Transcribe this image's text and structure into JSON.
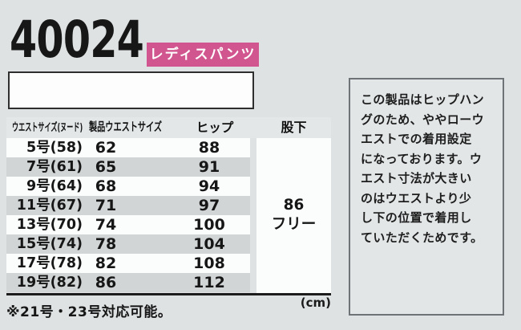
{
  "header": {
    "product_code": "40024",
    "badge_label": "レディスパンツ"
  },
  "size_table": {
    "columns": {
      "waist_nude": "ウエストサイズ(ヌード)",
      "product_waist": "製品ウエストサイズ",
      "hip": "ヒップ",
      "inseam": "股下"
    },
    "rows": [
      {
        "size": "5号(58)",
        "waist": "62",
        "hip": "88"
      },
      {
        "size": "7号(61)",
        "waist": "65",
        "hip": "91"
      },
      {
        "size": "9号(64)",
        "waist": "68",
        "hip": "94"
      },
      {
        "size": "11号(67)",
        "waist": "71",
        "hip": "97"
      },
      {
        "size": "13号(70)",
        "waist": "74",
        "hip": "100"
      },
      {
        "size": "15号(74)",
        "waist": "78",
        "hip": "104"
      },
      {
        "size": "17号(78)",
        "waist": "82",
        "hip": "108"
      },
      {
        "size": "19号(82)",
        "waist": "86",
        "hip": "112"
      }
    ],
    "inseam_values": [
      "86",
      "フリー"
    ],
    "unit": "(cm)",
    "note": "※21号・23号対応可能。"
  },
  "info_panel": {
    "text": "この製品はヒップハングのため、ややローウエストでの着用設定になっております。ウエスト寸法が大きいのはウエストより少し下の位置で着用していただくためです。",
    "lines": [
      "この製品はヒップハン",
      "グのため、ややローウ",
      "エストでの着用設定",
      "になっております。ウ",
      "エスト寸法が大きい",
      "のはウエストより少",
      "し下の位置で着用し",
      "ていただくためです。"
    ]
  },
  "colors": {
    "page_bg": "#dee2e3",
    "badge_pink": "#d1568f",
    "row_stripe": "#d1d5d6",
    "row_plain": "#fbfdfd",
    "text": "#161616"
  }
}
